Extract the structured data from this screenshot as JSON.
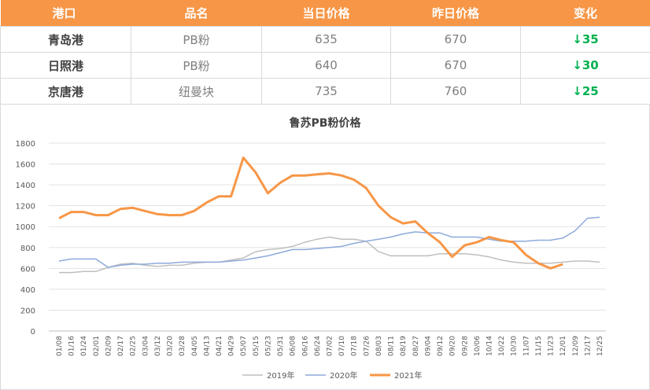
{
  "table": {
    "headers": [
      "港口",
      "品名",
      "当日价格",
      "昨日价格",
      "变化"
    ],
    "rows": [
      {
        "port": "青岛港",
        "product": "PB粉",
        "today": "635",
        "yesterday": "670",
        "change": "↓35"
      },
      {
        "port": "日照港",
        "product": "PB粉",
        "today": "640",
        "yesterday": "670",
        "change": "↓30"
      },
      {
        "port": "京唐港",
        "product": "纽曼块",
        "today": "735",
        "yesterday": "760",
        "change": "↓25"
      }
    ],
    "change_color": "#00b050",
    "header_color": "#f79646"
  },
  "chart_data": {
    "type": "line",
    "title": "鲁苏PB粉价格",
    "ylim": [
      0,
      1800
    ],
    "yticks": [
      0,
      200,
      400,
      600,
      800,
      1000,
      1200,
      1400,
      1600,
      1800
    ],
    "grid": true,
    "legend": "bottom",
    "x": [
      "01/08",
      "01/16",
      "01/24",
      "02/01",
      "02/09",
      "02/17",
      "02/25",
      "03/04",
      "03/12",
      "03/20",
      "03/28",
      "04/05",
      "04/13",
      "04/21",
      "04/29",
      "05/07",
      "05/15",
      "05/23",
      "05/31",
      "06/08",
      "06/16",
      "06/24",
      "07/02",
      "07/10",
      "07/18",
      "07/26",
      "08/03",
      "08/11",
      "08/19",
      "08/27",
      "09/04",
      "09/12",
      "09/20",
      "09/28",
      "10/06",
      "10/14",
      "10/22",
      "10/30",
      "11/07",
      "11/15",
      "11/23",
      "12/01",
      "12/09",
      "12/17",
      "12/25"
    ],
    "series": [
      {
        "name": "2019年",
        "color": "#bfbfbf",
        "width": 1.5,
        "values": [
          560,
          560,
          570,
          570,
          610,
          640,
          650,
          630,
          620,
          630,
          630,
          650,
          660,
          660,
          680,
          700,
          760,
          780,
          790,
          810,
          850,
          880,
          900,
          880,
          880,
          860,
          760,
          720,
          720,
          720,
          720,
          740,
          740,
          740,
          730,
          710,
          680,
          660,
          650,
          650,
          650,
          660,
          670,
          670,
          660
        ]
      },
      {
        "name": "2020年",
        "color": "#8eaadb",
        "width": 1.5,
        "values": [
          670,
          690,
          690,
          690,
          610,
          630,
          640,
          640,
          650,
          650,
          660,
          660,
          660,
          660,
          670,
          680,
          700,
          720,
          750,
          780,
          780,
          790,
          800,
          810,
          840,
          860,
          880,
          900,
          930,
          950,
          940,
          940,
          900,
          900,
          900,
          880,
          860,
          860,
          860,
          870,
          870,
          890,
          960,
          1080,
          1090
        ]
      },
      {
        "name": "2021年",
        "color": "#f79646",
        "width": 3,
        "values": [
          1080,
          1140,
          1140,
          1110,
          1110,
          1170,
          1180,
          1150,
          1120,
          1110,
          1110,
          1150,
          1230,
          1290,
          1290,
          1660,
          1520,
          1320,
          1420,
          1490,
          1490,
          1500,
          1510,
          1490,
          1450,
          1370,
          1200,
          1090,
          1030,
          1050,
          940,
          850,
          710,
          820,
          850,
          900,
          870,
          850,
          730,
          650,
          600,
          640,
          null,
          null,
          null
        ]
      }
    ]
  }
}
